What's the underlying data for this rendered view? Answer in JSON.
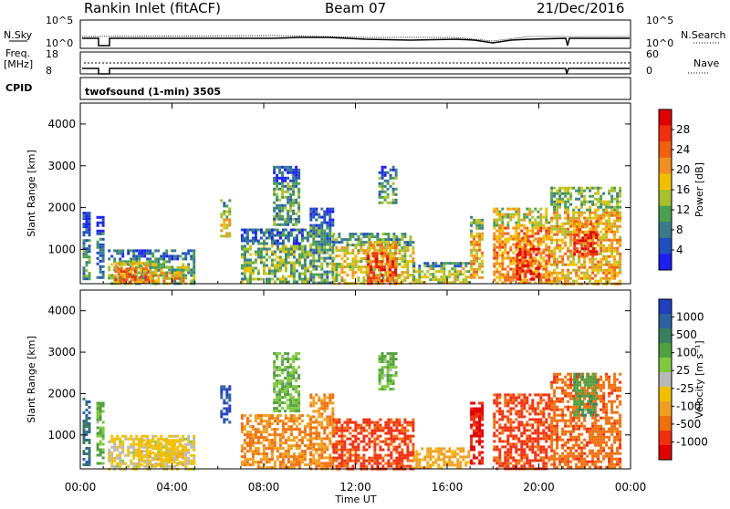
{
  "header": {
    "station": "Rankin Inlet (fitACF)",
    "beam": "Beam 07",
    "date": "21/Dec/2016"
  },
  "nsky_panel": {
    "left_label": "N.Sky",
    "right_label": "N.Search",
    "left_ticks": [
      "10^5",
      "10^0"
    ],
    "right_ticks": [
      "10^5",
      "10^0"
    ]
  },
  "freq_panel": {
    "left_label_1": "Freq.",
    "left_label_2": "[MHz]",
    "right_label": "Nave",
    "left_ticks": [
      "18",
      "8"
    ],
    "right_ticks": [
      "60",
      "0"
    ]
  },
  "cpid_panel": {
    "label": "CPID",
    "text": "twofsound (1-min) 3505"
  },
  "chart_data": [
    {
      "type": "heatmap",
      "parameter": "Power",
      "ylabel": "Slant Range [km]",
      "xlabel": "Time UT",
      "x_ticks": [
        "00:00",
        "04:00",
        "08:00",
        "12:00",
        "16:00",
        "20:00",
        "00:00"
      ],
      "y_ticks": [
        1000,
        2000,
        3000,
        4000
      ],
      "ylim": [
        180,
        4500
      ],
      "xlim_hours": [
        0,
        24
      ],
      "colorbar": {
        "label": "Power [dB]",
        "ticks": [
          "4",
          "8",
          "12",
          "16",
          "20",
          "24",
          "28"
        ],
        "range": [
          0,
          30
        ],
        "colors": [
          "#1e1ef0",
          "#2050c0",
          "#3a7a8a",
          "#4aa050",
          "#a8c030",
          "#f0c000",
          "#f09020",
          "#f06010",
          "#f03010",
          "#e00000"
        ]
      },
      "echo_regions": [
        {
          "t0": 0.1,
          "t1": 0.4,
          "r0": 300,
          "r1": 1900,
          "level": 8
        },
        {
          "t0": 0.7,
          "t1": 1.0,
          "r0": 300,
          "r1": 1800,
          "level": 6
        },
        {
          "t0": 1.2,
          "t1": 5.0,
          "r0": 200,
          "r1": 1000,
          "level": 12
        },
        {
          "t0": 1.5,
          "t1": 3.0,
          "r0": 200,
          "r1": 700,
          "level": 22
        },
        {
          "t0": 3.0,
          "t1": 4.5,
          "r0": 250,
          "r1": 600,
          "level": 18
        },
        {
          "t0": 6.1,
          "t1": 6.5,
          "r0": 1300,
          "r1": 2200,
          "level": 16
        },
        {
          "t0": 7.0,
          "t1": 10.0,
          "r0": 200,
          "r1": 1500,
          "level": 12
        },
        {
          "t0": 8.4,
          "t1": 9.5,
          "r0": 1600,
          "r1": 3000,
          "level": 10
        },
        {
          "t0": 10.0,
          "t1": 11.0,
          "r0": 200,
          "r1": 2000,
          "level": 10
        },
        {
          "t0": 11.0,
          "t1": 14.5,
          "r0": 200,
          "r1": 1400,
          "level": 16
        },
        {
          "t0": 12.5,
          "t1": 13.8,
          "r0": 200,
          "r1": 1200,
          "level": 24
        },
        {
          "t0": 13.0,
          "t1": 13.8,
          "r0": 2100,
          "r1": 3000,
          "level": 10
        },
        {
          "t0": 14.5,
          "t1": 17.0,
          "r0": 200,
          "r1": 700,
          "level": 14
        },
        {
          "t0": 17.0,
          "t1": 17.5,
          "r0": 300,
          "r1": 1800,
          "level": 18
        },
        {
          "t0": 18.0,
          "t1": 20.5,
          "r0": 200,
          "r1": 2000,
          "level": 20
        },
        {
          "t0": 19.0,
          "t1": 20.0,
          "r0": 300,
          "r1": 1300,
          "level": 26
        },
        {
          "t0": 20.5,
          "t1": 23.5,
          "r0": 200,
          "r1": 2500,
          "level": 18
        },
        {
          "t0": 21.5,
          "t1": 22.5,
          "r0": 900,
          "r1": 1700,
          "level": 26
        }
      ]
    },
    {
      "type": "heatmap",
      "parameter": "Velocity",
      "ylabel": "Slant Range [km]",
      "xlabel": "Time UT",
      "x_ticks": [
        "00:00",
        "04:00",
        "08:00",
        "12:00",
        "16:00",
        "20:00",
        "00:00"
      ],
      "y_ticks": [
        1000,
        2000,
        3000,
        4000
      ],
      "ylim": [
        180,
        4500
      ],
      "xlim_hours": [
        0,
        24
      ],
      "colorbar": {
        "label": "Velocity [m s⁻¹]",
        "ticks": [
          "1000",
          "500",
          "100",
          "25",
          "-25",
          "-100",
          "-500",
          "-1000"
        ],
        "colors": [
          "#2040c0",
          "#3060a0",
          "#3a8060",
          "#50a040",
          "#80c840",
          "#b8b8b8",
          "#f0c000",
          "#f0a020",
          "#f07010",
          "#f03010",
          "#e00000"
        ]
      },
      "echo_regions": [
        {
          "t0": 0.1,
          "t1": 0.4,
          "r0": 300,
          "r1": 1900,
          "level": 500
        },
        {
          "t0": 0.7,
          "t1": 1.0,
          "r0": 300,
          "r1": 1800,
          "level": 100
        },
        {
          "t0": 1.2,
          "t1": 5.0,
          "r0": 200,
          "r1": 1000,
          "level": 25
        },
        {
          "t0": 2.5,
          "t1": 4.5,
          "r0": 300,
          "r1": 900,
          "level": 0
        },
        {
          "t0": 6.1,
          "t1": 6.5,
          "r0": 1300,
          "r1": 2200,
          "level": 1000
        },
        {
          "t0": 7.0,
          "t1": 10.0,
          "r0": 200,
          "r1": 1500,
          "level": -100
        },
        {
          "t0": 8.4,
          "t1": 9.5,
          "r0": 1600,
          "r1": 3000,
          "level": 100
        },
        {
          "t0": 10.0,
          "t1": 11.0,
          "r0": 200,
          "r1": 2000,
          "level": -100
        },
        {
          "t0": 11.0,
          "t1": 14.5,
          "r0": 200,
          "r1": 1400,
          "level": -300
        },
        {
          "t0": 13.0,
          "t1": 13.8,
          "r0": 2100,
          "r1": 3000,
          "level": 100
        },
        {
          "t0": 14.5,
          "t1": 17.0,
          "r0": 200,
          "r1": 700,
          "level": -50
        },
        {
          "t0": 17.0,
          "t1": 17.5,
          "r0": 300,
          "r1": 1800,
          "level": -600
        },
        {
          "t0": 18.0,
          "t1": 20.5,
          "r0": 200,
          "r1": 2000,
          "level": -300
        },
        {
          "t0": 20.5,
          "t1": 23.5,
          "r0": 200,
          "r1": 2500,
          "level": -200
        },
        {
          "t0": 21.5,
          "t1": 22.5,
          "r0": 1500,
          "r1": 2500,
          "level": 200
        }
      ]
    }
  ]
}
